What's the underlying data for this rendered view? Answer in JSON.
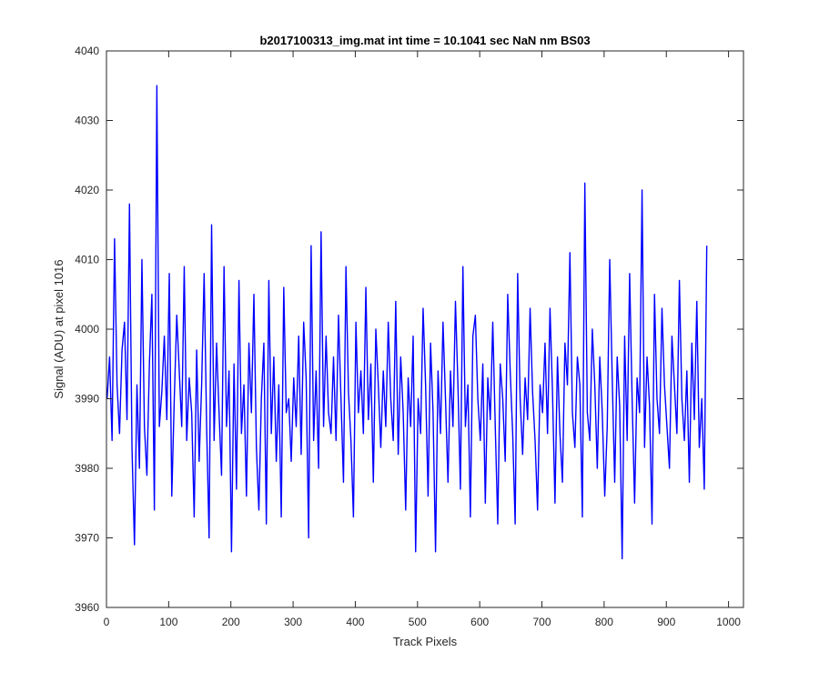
{
  "chart_data": {
    "type": "line",
    "title": "b2017100313_img.mat int time = 10.1041 sec  NaN nm BS03",
    "xlabel": "Track Pixels",
    "ylabel": "Signal (ADU) at pixel 1016",
    "xlim": [
      0,
      1024
    ],
    "ylim": [
      3960,
      4040
    ],
    "xticks": [
      0,
      100,
      200,
      300,
      400,
      500,
      600,
      700,
      800,
      900,
      1000
    ],
    "yticks": [
      3960,
      3970,
      3980,
      3990,
      4000,
      4010,
      4020,
      4030,
      4040
    ],
    "grid": false,
    "series_color": "#0000ff",
    "series": [
      {
        "x_start": 1,
        "x_step": 4,
        "y": [
          3990,
          3996,
          3984,
          4013,
          3992,
          3985,
          3997,
          4001,
          3987,
          4018,
          3983,
          3969,
          3992,
          3980,
          4010,
          3986,
          3979,
          3995,
          4005,
          3974,
          4035,
          3986,
          3991,
          3999,
          3987,
          4008,
          3976,
          3990,
          4002,
          3994,
          3986,
          4009,
          3984,
          3993,
          3988,
          3973,
          3997,
          3981,
          3992,
          4008,
          3986,
          3970,
          4015,
          3984,
          3998,
          3988,
          3979,
          4009,
          3986,
          3994,
          3968,
          3995,
          3977,
          4007,
          3985,
          3992,
          3976,
          3998,
          3988,
          4005,
          3983,
          3974,
          3990,
          3998,
          3972,
          4007,
          3985,
          3996,
          3981,
          3992,
          3973,
          4006,
          3988,
          3990,
          3981,
          3993,
          3986,
          3999,
          3982,
          4001,
          3993,
          3970,
          4012,
          3984,
          3994,
          3980,
          4014,
          3986,
          3999,
          3988,
          3985,
          3996,
          3984,
          4002,
          3990,
          3978,
          4009,
          3991,
          3984,
          3973,
          4001,
          3988,
          3994,
          3985,
          4006,
          3987,
          3995,
          3978,
          4000,
          3992,
          3983,
          3994,
          3986,
          4001,
          3990,
          3984,
          4004,
          3982,
          3996,
          3988,
          3974,
          3993,
          3986,
          3999,
          3968,
          3990,
          3985,
          4003,
          3992,
          3976,
          3998,
          3988,
          3968,
          3994,
          3985,
          4001,
          3990,
          3978,
          3994,
          3986,
          4004,
          3992,
          3977,
          4009,
          3986,
          3992,
          3973,
          3999,
          4002,
          3990,
          3984,
          3995,
          3975,
          3993,
          3987,
          4001,
          3986,
          3972,
          3995,
          3990,
          3981,
          4005,
          3994,
          3985,
          3972,
          4008,
          3990,
          3982,
          3993,
          3987,
          4003,
          3991,
          3984,
          3974,
          3992,
          3988,
          3998,
          3985,
          4003,
          3991,
          3975,
          3996,
          3985,
          3978,
          3998,
          3992,
          4011,
          3988,
          3983,
          3996,
          3992,
          3973,
          4021,
          3988,
          3984,
          4000,
          3992,
          3980,
          3996,
          3988,
          3976,
          3986,
          4010,
          3993,
          3978,
          3996,
          3989,
          3967,
          3999,
          3984,
          4008,
          3990,
          3975,
          3993,
          3988,
          4020,
          3983,
          3996,
          3989,
          3972,
          4005,
          3990,
          3985,
          4003,
          3992,
          3986,
          3980,
          3999,
          3992,
          3985,
          4007,
          3990,
          3984,
          3994,
          3978,
          3998,
          3987,
          4004,
          3983,
          3990,
          3977,
          4012
        ]
      }
    ]
  }
}
